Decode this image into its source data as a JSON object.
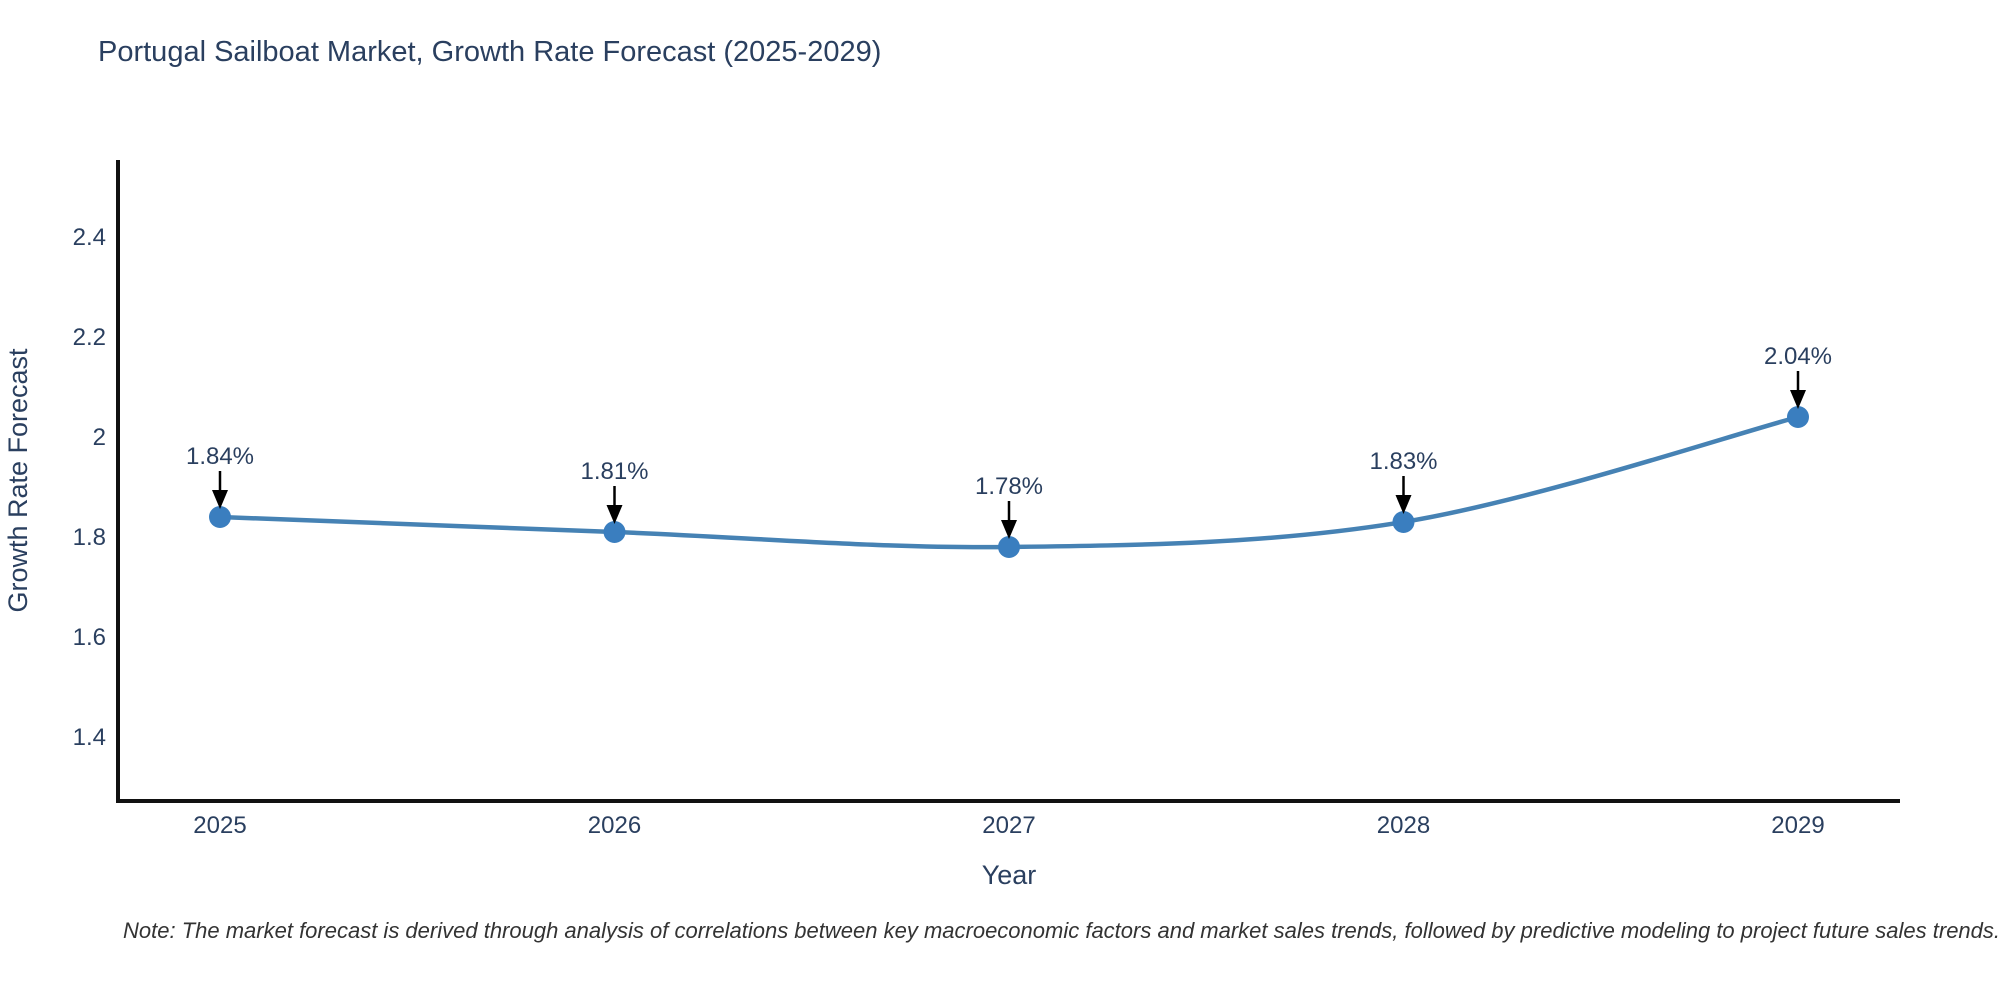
{
  "chart_data": {
    "type": "line",
    "title": "Portugal Sailboat Market, Growth Rate Forecast (2025-2029)",
    "xlabel": "Year",
    "ylabel": "Growth Rate Forecast",
    "categories": [
      "2025",
      "2026",
      "2027",
      "2028",
      "2029"
    ],
    "values": [
      1.84,
      1.81,
      1.78,
      1.83,
      2.04
    ],
    "point_labels": [
      "1.84%",
      "1.81%",
      "1.78%",
      "1.83%",
      "2.04%"
    ],
    "yticks": [
      1.4,
      1.6,
      1.8,
      2,
      2.2,
      2.4
    ],
    "ylim": [
      1.27,
      2.55
    ],
    "grid": false,
    "legend": "none",
    "line_color": "#4682b4",
    "marker_color": "#3a7ebf",
    "axis_color": "#111111",
    "text_color": "#2a3f5f",
    "arrow_color": "#000000",
    "note": "Note: The market forecast is derived through analysis of correlations between key macroeconomic factors and market sales trends, followed by predictive modeling to project future sales trends."
  }
}
